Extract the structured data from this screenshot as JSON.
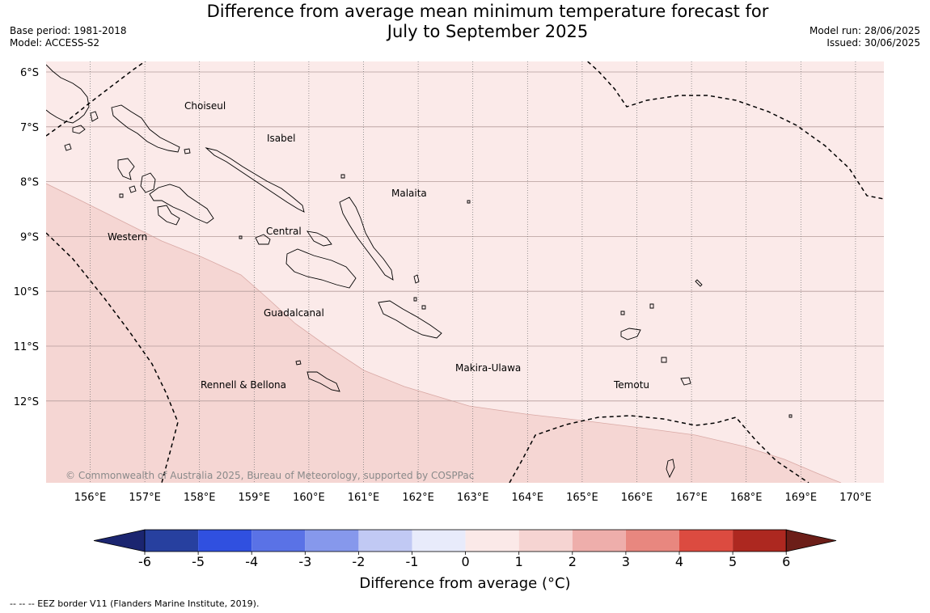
{
  "title_line1": "Difference from average mean minimum temperature forecast for",
  "title_line2": "July to September 2025",
  "meta_left": {
    "base_period": "Base period: 1981-2018",
    "model": "Model: ACCESS-S2"
  },
  "meta_right": {
    "model_run": "Model run: 28/06/2025",
    "issued": "Issued: 30/06/2025"
  },
  "lat_labels": [
    "6°S",
    "7°S",
    "8°S",
    "9°S",
    "10°S",
    "11°S",
    "12°S"
  ],
  "lon_labels": [
    "156°E",
    "157°E",
    "158°E",
    "159°E",
    "160°E",
    "161°E",
    "162°E",
    "163°E",
    "164°E",
    "165°E",
    "166°E",
    "167°E",
    "168°E",
    "169°E",
    "170°E"
  ],
  "regions": [
    "Choiseul",
    "Isabel",
    "Malaita",
    "Western",
    "Central",
    "Guadalcanal",
    "Makira-Ulawa",
    "Rennell & Bellona",
    "Temotu"
  ],
  "copyright": "© Commonwealth of Australia 2025, Bureau of Meteorology, supported by COSPPac",
  "colorbar": {
    "ticks": [
      "-6",
      "-5",
      "-4",
      "-3",
      "-2",
      "-1",
      "0",
      "1",
      "2",
      "3",
      "4",
      "5",
      "6"
    ],
    "colors": [
      "#1b2570",
      "#27409f",
      "#3050e0",
      "#5a72e6",
      "#8698ec",
      "#c1c9f4",
      "#e8ebfb",
      "#fbe9e8",
      "#f6d4d2",
      "#eeaeab",
      "#e8877f",
      "#dc4b40",
      "#ad2820",
      "#6c1e18"
    ],
    "title": "Difference from average (°C)"
  },
  "fill_colors": {
    "zone_0_1": "#fbeae9",
    "zone_1_2": "#f5d6d3"
  },
  "footnote": "--  --  -- EEZ border V11 (Flanders Marine Institute, 2019)."
}
